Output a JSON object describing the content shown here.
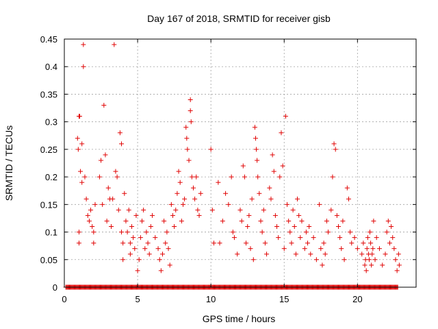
{
  "chart_data": {
    "type": "scatter",
    "title": "Day 167 of 2018, SRMTID for receiver gisb",
    "xlabel": "GPS time / hours",
    "ylabel": "SRMTID / TECUs",
    "xlim": [
      0,
      24
    ],
    "ylim": [
      0,
      0.45
    ],
    "xticks": [
      "0",
      "5",
      "10",
      "15",
      "20"
    ],
    "yticks": [
      "0",
      "0.05",
      "0.1",
      "0.15",
      "0.2",
      "0.25",
      "0.3",
      "0.35",
      "0.4",
      "0.45"
    ],
    "grid": true,
    "marker": "+",
    "color": "#e00000",
    "series": [
      {
        "name": "SRMTID",
        "points": [
          [
            0.9,
            0.27
          ],
          [
            0.95,
            0.25
          ],
          [
            1.0,
            0.31
          ],
          [
            1.05,
            0.31
          ],
          [
            1.1,
            0.21
          ],
          [
            1.2,
            0.19
          ],
          [
            1.3,
            0.44
          ],
          [
            1.3,
            0.4
          ],
          [
            1.0,
            0.1
          ],
          [
            1.0,
            0.08
          ],
          [
            1.2,
            0.26
          ],
          [
            1.4,
            0.2
          ],
          [
            1.5,
            0.16
          ],
          [
            1.6,
            0.13
          ],
          [
            1.7,
            0.12
          ],
          [
            1.8,
            0.14
          ],
          [
            1.9,
            0.11
          ],
          [
            2.0,
            0.1
          ],
          [
            2.0,
            0.08
          ],
          [
            2.1,
            0.15
          ],
          [
            2.4,
            0.2
          ],
          [
            2.5,
            0.23
          ],
          [
            2.6,
            0.15
          ],
          [
            2.7,
            0.33
          ],
          [
            2.8,
            0.24
          ],
          [
            2.9,
            0.12
          ],
          [
            3.0,
            0.18
          ],
          [
            3.1,
            0.16
          ],
          [
            3.2,
            0.11
          ],
          [
            3.3,
            0.16
          ],
          [
            3.4,
            0.44
          ],
          [
            3.5,
            0.21
          ],
          [
            3.6,
            0.2
          ],
          [
            3.7,
            0.14
          ],
          [
            3.8,
            0.28
          ],
          [
            3.9,
            0.26
          ],
          [
            3.9,
            0.1
          ],
          [
            4.0,
            0.08
          ],
          [
            4.0,
            0.05
          ],
          [
            4.1,
            0.17
          ],
          [
            4.2,
            0.12
          ],
          [
            4.3,
            0.1
          ],
          [
            4.4,
            0.14
          ],
          [
            4.5,
            0.08
          ],
          [
            4.5,
            0.06
          ],
          [
            4.6,
            0.11
          ],
          [
            4.7,
            0.09
          ],
          [
            4.8,
            0.07
          ],
          [
            4.9,
            0.13
          ],
          [
            5.0,
            0.03
          ],
          [
            5.1,
            0.05
          ],
          [
            5.2,
            0.09
          ],
          [
            5.3,
            0.12
          ],
          [
            5.4,
            0.14
          ],
          [
            5.5,
            0.07
          ],
          [
            5.6,
            0.1
          ],
          [
            5.7,
            0.08
          ],
          [
            5.8,
            0.06
          ],
          [
            5.9,
            0.11
          ],
          [
            6.0,
            0.13
          ],
          [
            6.2,
            0.09
          ],
          [
            6.4,
            0.07
          ],
          [
            6.5,
            0.05
          ],
          [
            6.6,
            0.03
          ],
          [
            6.7,
            0.06
          ],
          [
            6.8,
            0.12
          ],
          [
            6.9,
            0.08
          ],
          [
            7.0,
            0.1
          ],
          [
            7.1,
            0.07
          ],
          [
            7.2,
            0.04
          ],
          [
            7.3,
            0.15
          ],
          [
            7.4,
            0.13
          ],
          [
            7.5,
            0.11
          ],
          [
            7.6,
            0.14
          ],
          [
            7.7,
            0.17
          ],
          [
            7.8,
            0.21
          ],
          [
            7.9,
            0.19
          ],
          [
            8.0,
            0.12
          ],
          [
            8.1,
            0.15
          ],
          [
            8.2,
            0.16
          ],
          [
            8.3,
            0.29
          ],
          [
            8.35,
            0.27
          ],
          [
            8.4,
            0.25
          ],
          [
            8.5,
            0.23
          ],
          [
            8.6,
            0.34
          ],
          [
            8.6,
            0.32
          ],
          [
            8.65,
            0.3
          ],
          [
            8.7,
            0.2
          ],
          [
            8.8,
            0.18
          ],
          [
            8.9,
            0.16
          ],
          [
            9.0,
            0.2
          ],
          [
            9.1,
            0.14
          ],
          [
            9.2,
            0.13
          ],
          [
            9.3,
            0.17
          ],
          [
            10.0,
            0.25
          ],
          [
            10.1,
            0.14
          ],
          [
            10.2,
            0.08
          ],
          [
            10.5,
            0.19
          ],
          [
            10.6,
            0.08
          ],
          [
            10.8,
            0.12
          ],
          [
            11.0,
            0.17
          ],
          [
            11.2,
            0.15
          ],
          [
            11.4,
            0.2
          ],
          [
            11.5,
            0.1
          ],
          [
            11.6,
            0.09
          ],
          [
            11.8,
            0.06
          ],
          [
            12.0,
            0.14
          ],
          [
            12.1,
            0.12
          ],
          [
            12.2,
            0.22
          ],
          [
            12.3,
            0.2
          ],
          [
            12.4,
            0.08
          ],
          [
            12.5,
            0.11
          ],
          [
            12.6,
            0.13
          ],
          [
            12.7,
            0.07
          ],
          [
            12.8,
            0.16
          ],
          [
            12.9,
            0.05
          ],
          [
            13.0,
            0.29
          ],
          [
            13.05,
            0.27
          ],
          [
            13.1,
            0.25
          ],
          [
            13.15,
            0.23
          ],
          [
            13.2,
            0.2
          ],
          [
            13.3,
            0.17
          ],
          [
            13.4,
            0.12
          ],
          [
            13.5,
            0.1
          ],
          [
            13.6,
            0.14
          ],
          [
            13.7,
            0.08
          ],
          [
            13.8,
            0.06
          ],
          [
            14.0,
            0.18
          ],
          [
            14.1,
            0.16
          ],
          [
            14.2,
            0.24
          ],
          [
            14.3,
            0.21
          ],
          [
            14.4,
            0.13
          ],
          [
            14.5,
            0.11
          ],
          [
            14.6,
            0.09
          ],
          [
            14.7,
            0.2
          ],
          [
            14.8,
            0.28
          ],
          [
            14.9,
            0.22
          ],
          [
            15.0,
            0.07
          ],
          [
            15.1,
            0.31
          ],
          [
            15.2,
            0.15
          ],
          [
            15.3,
            0.12
          ],
          [
            15.4,
            0.1
          ],
          [
            15.5,
            0.08
          ],
          [
            15.6,
            0.14
          ],
          [
            15.7,
            0.11
          ],
          [
            15.8,
            0.06
          ],
          [
            15.9,
            0.16
          ],
          [
            16.0,
            0.13
          ],
          [
            16.1,
            0.09
          ],
          [
            16.2,
            0.12
          ],
          [
            16.4,
            0.07
          ],
          [
            16.5,
            0.1
          ],
          [
            16.6,
            0.08
          ],
          [
            16.7,
            0.11
          ],
          [
            16.8,
            0.06
          ],
          [
            17.0,
            0.09
          ],
          [
            17.2,
            0.05
          ],
          [
            17.4,
            0.15
          ],
          [
            17.5,
            0.07
          ],
          [
            17.6,
            0.04
          ],
          [
            17.7,
            0.08
          ],
          [
            17.8,
            0.06
          ],
          [
            17.9,
            0.12
          ],
          [
            18.0,
            0.1
          ],
          [
            18.2,
            0.14
          ],
          [
            18.3,
            0.2
          ],
          [
            18.4,
            0.26
          ],
          [
            18.5,
            0.25
          ],
          [
            18.6,
            0.13
          ],
          [
            18.7,
            0.11
          ],
          [
            18.8,
            0.09
          ],
          [
            18.9,
            0.07
          ],
          [
            19.0,
            0.12
          ],
          [
            19.1,
            0.05
          ],
          [
            19.3,
            0.18
          ],
          [
            19.4,
            0.16
          ],
          [
            19.5,
            0.1
          ],
          [
            19.6,
            0.08
          ],
          [
            19.8,
            0.09
          ],
          [
            20.0,
            0.07
          ],
          [
            20.3,
            0.06
          ],
          [
            20.4,
            0.08
          ],
          [
            20.5,
            0.04
          ],
          [
            20.55,
            0.05
          ],
          [
            20.6,
            0.03
          ],
          [
            20.65,
            0.07
          ],
          [
            20.7,
            0.09
          ],
          [
            20.75,
            0.06
          ],
          [
            20.8,
            0.05
          ],
          [
            20.85,
            0.1
          ],
          [
            20.9,
            0.08
          ],
          [
            20.95,
            0.04
          ],
          [
            21.0,
            0.06
          ],
          [
            21.05,
            0.07
          ],
          [
            21.1,
            0.12
          ],
          [
            21.2,
            0.05
          ],
          [
            21.3,
            0.09
          ],
          [
            21.5,
            0.07
          ],
          [
            21.7,
            0.04
          ],
          [
            21.9,
            0.06
          ],
          [
            22.0,
            0.1
          ],
          [
            22.1,
            0.12
          ],
          [
            22.2,
            0.08
          ],
          [
            22.3,
            0.11
          ],
          [
            22.4,
            0.09
          ],
          [
            22.5,
            0.07
          ],
          [
            22.6,
            0.05
          ],
          [
            22.7,
            0.03
          ],
          [
            22.8,
            0.06
          ],
          [
            22.85,
            0.04
          ]
        ]
      }
    ],
    "zero_band": [
      0.1,
      22.8
    ]
  }
}
